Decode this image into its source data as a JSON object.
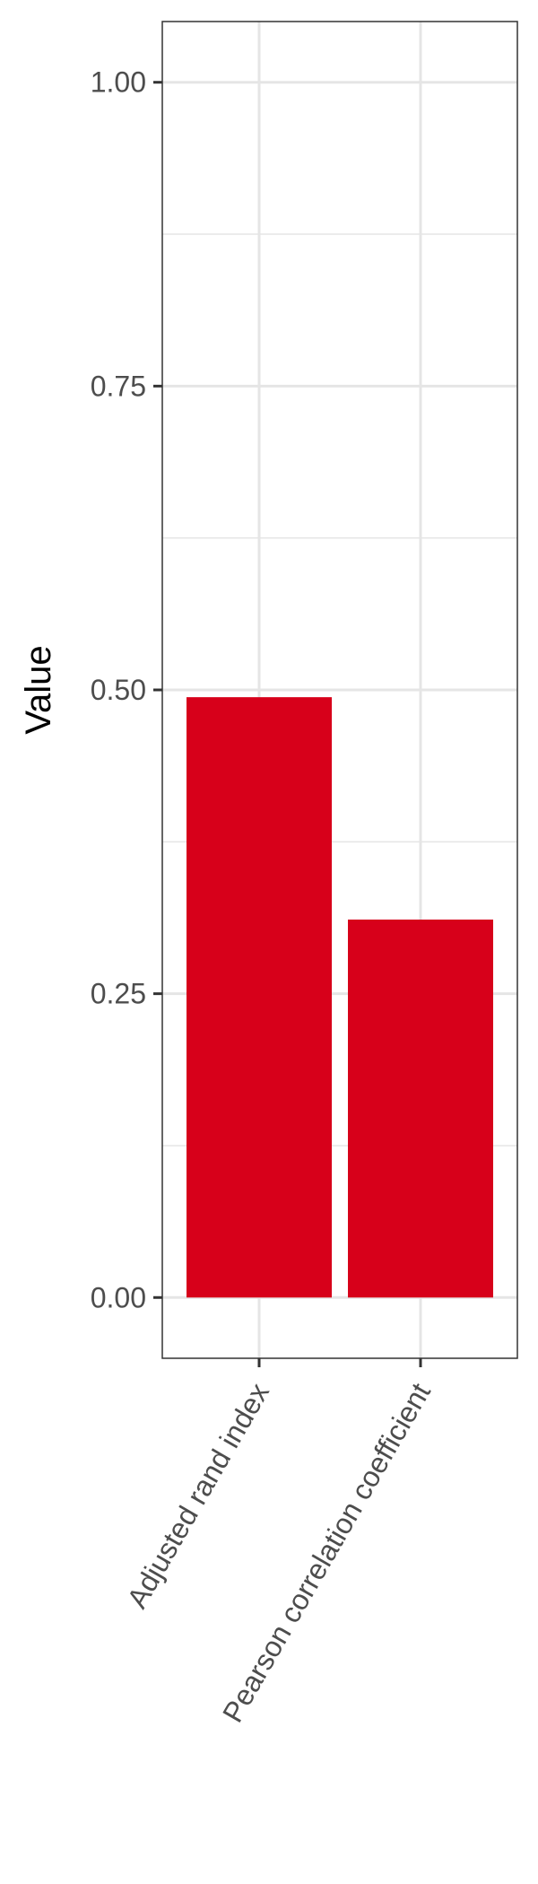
{
  "chart_data": {
    "type": "bar",
    "categories": [
      "Adjusted rand index",
      "Pearson correlation coefficient"
    ],
    "values": [
      0.494,
      0.311
    ],
    "title": "",
    "xlabel": "",
    "ylabel": "Value",
    "ylim": [
      -0.05,
      1.05
    ],
    "yticks": [
      0.0,
      0.25,
      0.5,
      0.75,
      1.0
    ],
    "ytick_labels": [
      "0.00",
      "0.25",
      "0.50",
      "0.75",
      "1.00"
    ],
    "grid": true,
    "legend": "none",
    "bar_color": "#d7001a",
    "panel_background": "#ffffff",
    "grid_color": "#e5e5e5"
  }
}
